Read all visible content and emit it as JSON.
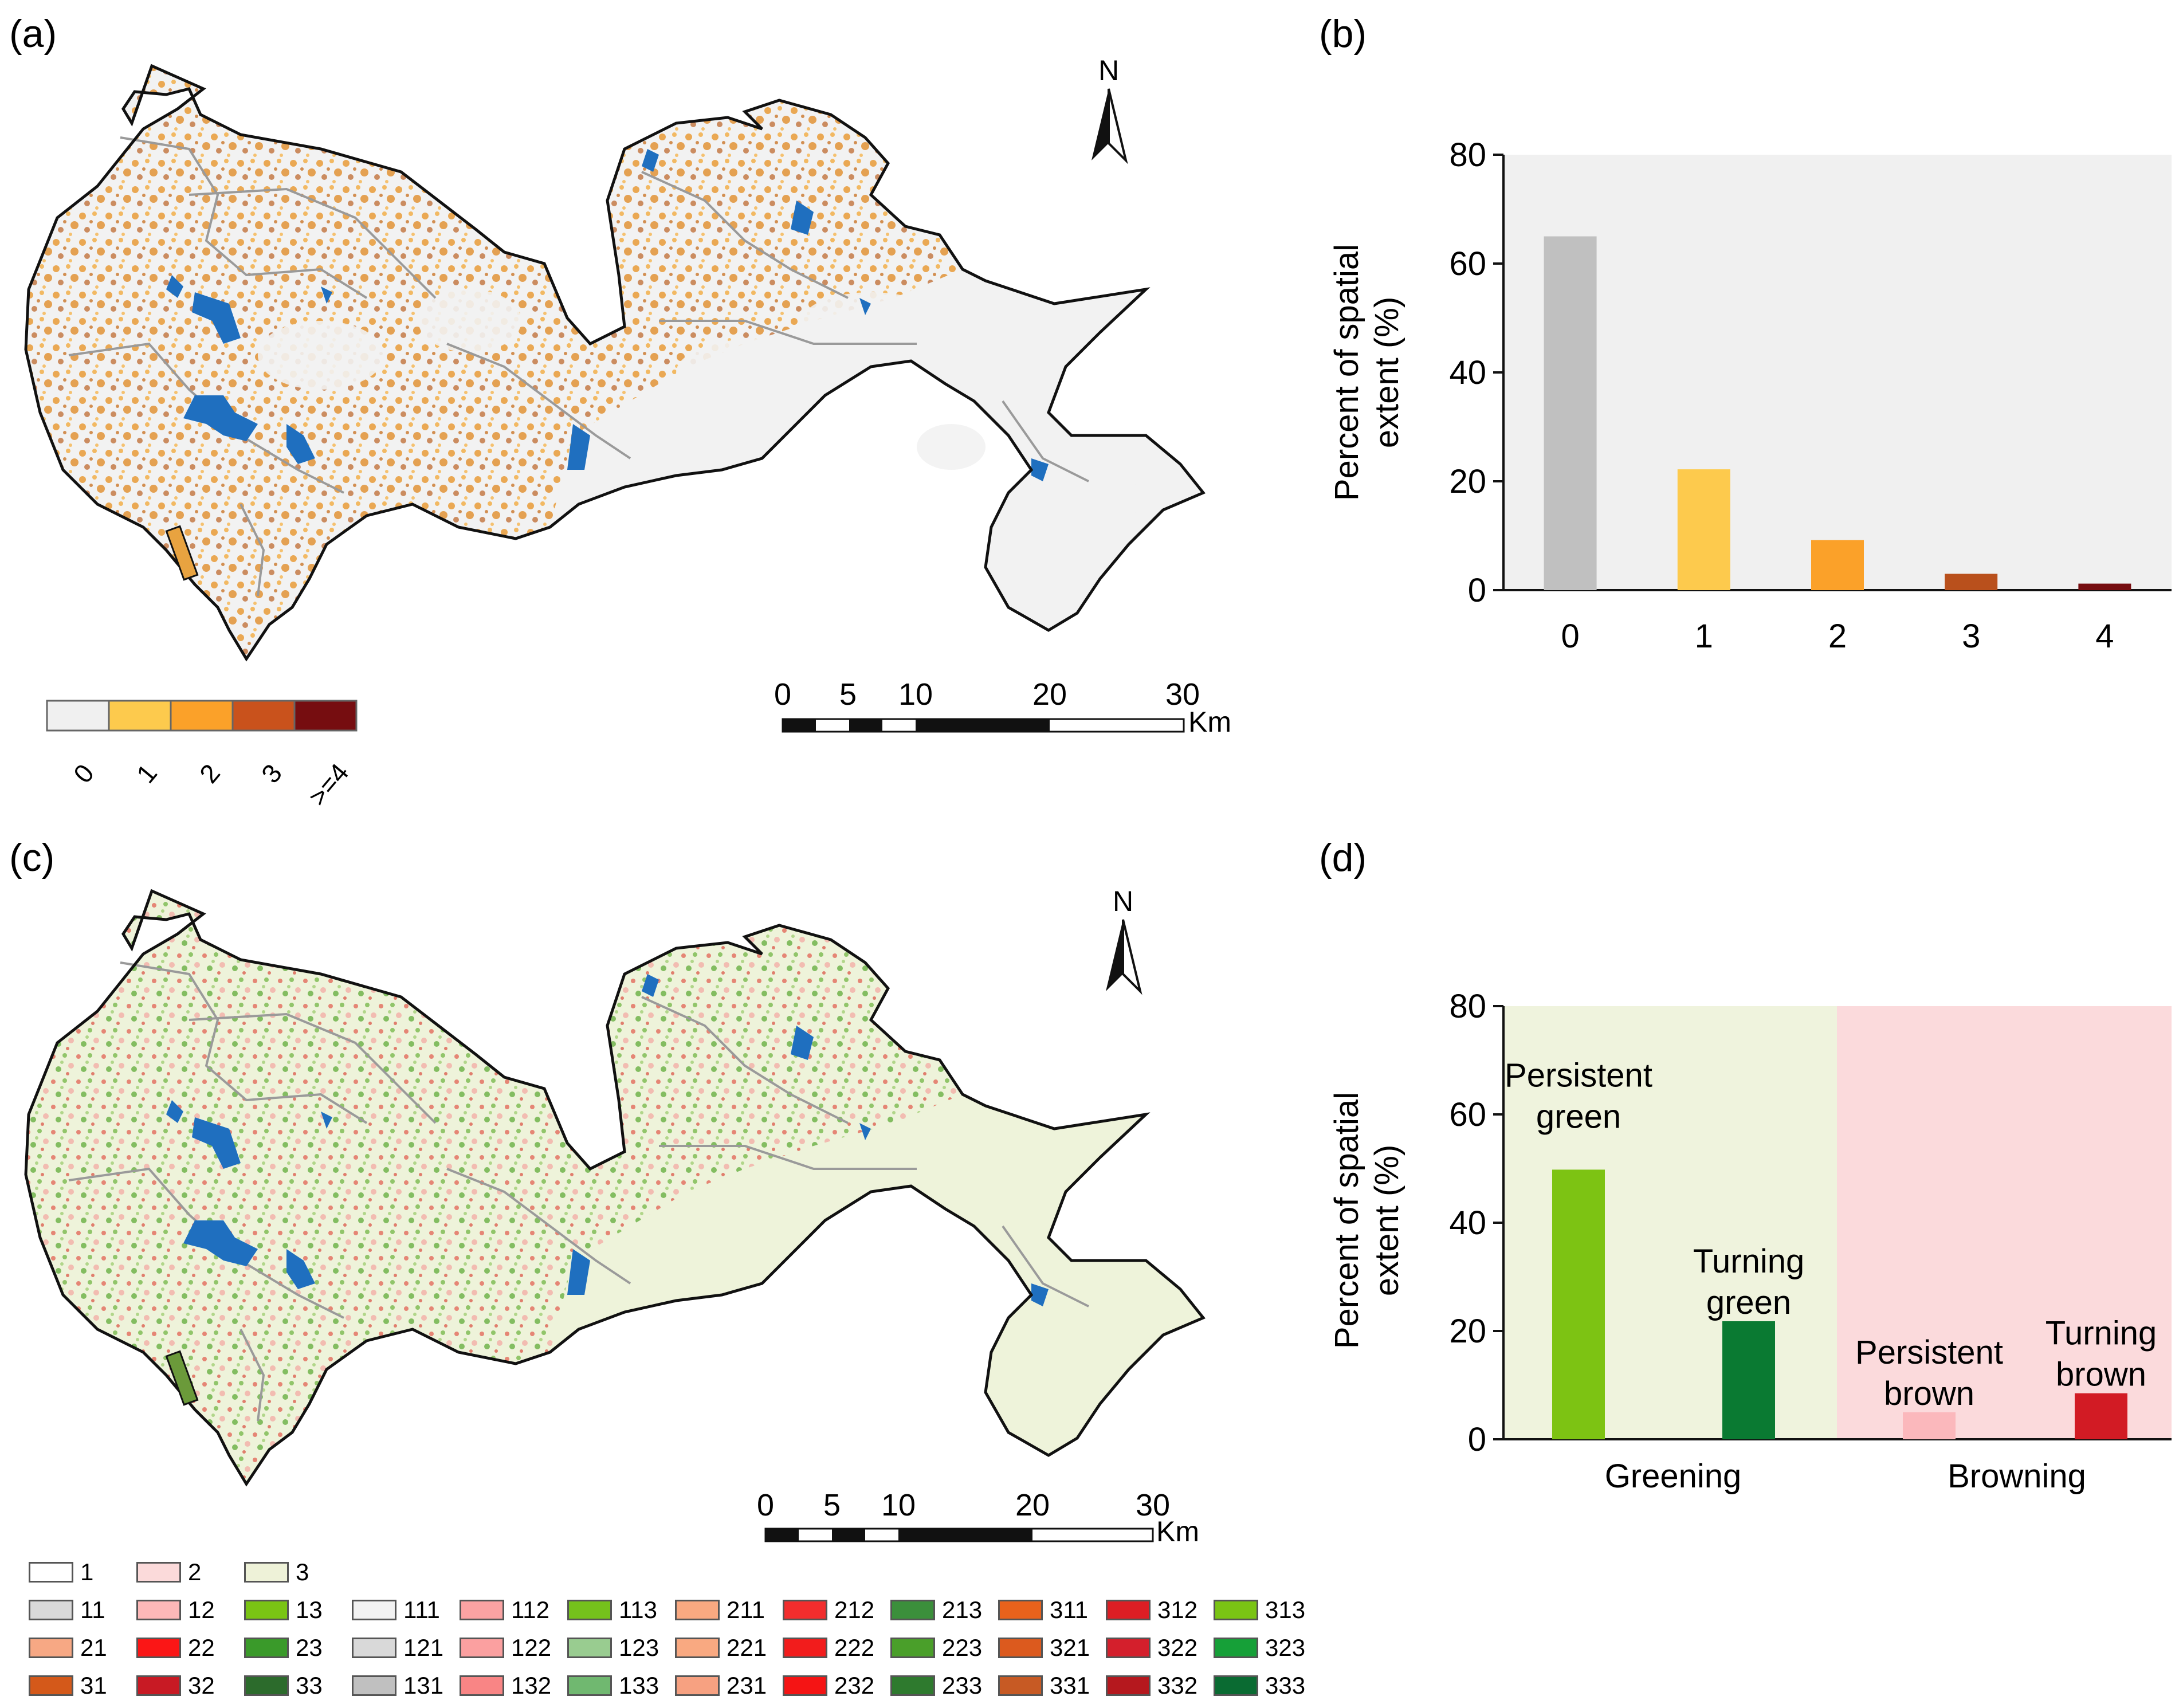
{
  "panel_labels": {
    "a": "(a)",
    "b": "(b)",
    "c": "(c)",
    "d": "(d)"
  },
  "map_a": {
    "north_label": "N",
    "scale_ticks": [
      "0",
      "5",
      "10",
      "20",
      "30"
    ],
    "scale_unit": "Km",
    "legend": [
      {
        "label": "0",
        "color": "#f0f0f0"
      },
      {
        "label": "1",
        "color": "#fdca4d"
      },
      {
        "label": "2",
        "color": "#fba129"
      },
      {
        "label": "3",
        "color": "#c9521c"
      },
      {
        "label": ">=4",
        "color": "#760d10"
      }
    ],
    "colors": {
      "land": "#f2f2f2",
      "orange": "#e8962e",
      "dark_orange": "#b85a17",
      "water": "#1f6fbf",
      "boundary": "#111111",
      "roads": "#9a9a9a"
    }
  },
  "map_c": {
    "north_label": "N",
    "scale_ticks": [
      "0",
      "5",
      "10",
      "20",
      "30"
    ],
    "scale_unit": "Km",
    "colors": {
      "land": "#eef3da",
      "green": "#6db33f",
      "red": "#e0463a",
      "pink": "#f3b0a8",
      "water": "#1f6fbf",
      "boundary": "#111111",
      "roads": "#9a9a9a"
    }
  },
  "chart_data": [
    {
      "type": "bar",
      "panel": "b",
      "categories": [
        "0",
        "1",
        "2",
        "3",
        "4"
      ],
      "values": [
        65,
        22.2,
        9.2,
        3.0,
        1.2
      ],
      "colors": [
        "#c0c0c0",
        "#fdca4d",
        "#fba129",
        "#b9501c",
        "#760d10"
      ],
      "ylabel": "Percent of spatial extent (%)",
      "ylabel_lines": [
        "Percent of spatial",
        "extent  (%)"
      ],
      "ylim": [
        0,
        80
      ],
      "yticks": [
        "0",
        "20",
        "40",
        "60",
        "80"
      ],
      "background": "#f0f0f0"
    },
    {
      "type": "bar",
      "panel": "d",
      "groups": [
        "Greening",
        "Browning"
      ],
      "categories": [
        "Persistent green",
        "Turning green",
        "Persistent brown",
        "Turning brown"
      ],
      "category_label_lines": [
        [
          "Persistent",
          "green"
        ],
        [
          "Turning",
          "green"
        ],
        [
          "Persistent",
          "brown"
        ],
        [
          "Turning",
          "brown"
        ]
      ],
      "values": [
        49.8,
        21.8,
        5.0,
        8.5
      ],
      "colors": [
        "#7dc313",
        "#0a7a32",
        "#fbb8bc",
        "#d21b24"
      ],
      "group_backgrounds": [
        "#eff3dd",
        "#fbdadc"
      ],
      "ylabel": "Percent of spatial extent (%)",
      "ylabel_lines": [
        "Percent of spatial",
        "extent  (%)"
      ],
      "ylim": [
        0,
        80
      ],
      "yticks": [
        "0",
        "20",
        "40",
        "60",
        "80"
      ]
    }
  ],
  "legend_c": {
    "items": [
      {
        "code": "1",
        "color": "#ffffff"
      },
      {
        "code": "2",
        "color": "#fbdada"
      },
      {
        "code": "3",
        "color": "#eef2d8"
      },
      {
        "code": "11",
        "color": "#d9d9d9"
      },
      {
        "code": "12",
        "color": "#fdb8b8"
      },
      {
        "code": "13",
        "color": "#7ac414"
      },
      {
        "code": "111",
        "color": "#f2f2f2"
      },
      {
        "code": "112",
        "color": "#fba3a3"
      },
      {
        "code": "113",
        "color": "#75c11c"
      },
      {
        "code": "211",
        "color": "#f9a981"
      },
      {
        "code": "212",
        "color": "#f22d2d"
      },
      {
        "code": "213",
        "color": "#3b8f3b"
      },
      {
        "code": "311",
        "color": "#e8621c"
      },
      {
        "code": "312",
        "color": "#dc1e24"
      },
      {
        "code": "313",
        "color": "#7ac414"
      },
      {
        "code": "21",
        "color": "#f7a884"
      },
      {
        "code": "22",
        "color": "#fb1616"
      },
      {
        "code": "23",
        "color": "#3a9a2a"
      },
      {
        "code": "121",
        "color": "#d9d9d9"
      },
      {
        "code": "122",
        "color": "#fba0a0"
      },
      {
        "code": "123",
        "color": "#99cc90"
      },
      {
        "code": "221",
        "color": "#f9a981"
      },
      {
        "code": "222",
        "color": "#f21c1c"
      },
      {
        "code": "223",
        "color": "#4a9f2a"
      },
      {
        "code": "321",
        "color": "#dc5a1e"
      },
      {
        "code": "322",
        "color": "#d41f2c"
      },
      {
        "code": "323",
        "color": "#16a038"
      },
      {
        "code": "31",
        "color": "#d4591a"
      },
      {
        "code": "32",
        "color": "#c81a24"
      },
      {
        "code": "33",
        "color": "#2c6b2c"
      },
      {
        "code": "131",
        "color": "#c0c0c0"
      },
      {
        "code": "132",
        "color": "#f98585"
      },
      {
        "code": "133",
        "color": "#70b870"
      },
      {
        "code": "231",
        "color": "#f7a181"
      },
      {
        "code": "232",
        "color": "#f51414"
      },
      {
        "code": "233",
        "color": "#2e7a2e"
      },
      {
        "code": "331",
        "color": "#c75a24"
      },
      {
        "code": "332",
        "color": "#b5181e"
      },
      {
        "code": "333",
        "color": "#0a6b32"
      }
    ]
  }
}
